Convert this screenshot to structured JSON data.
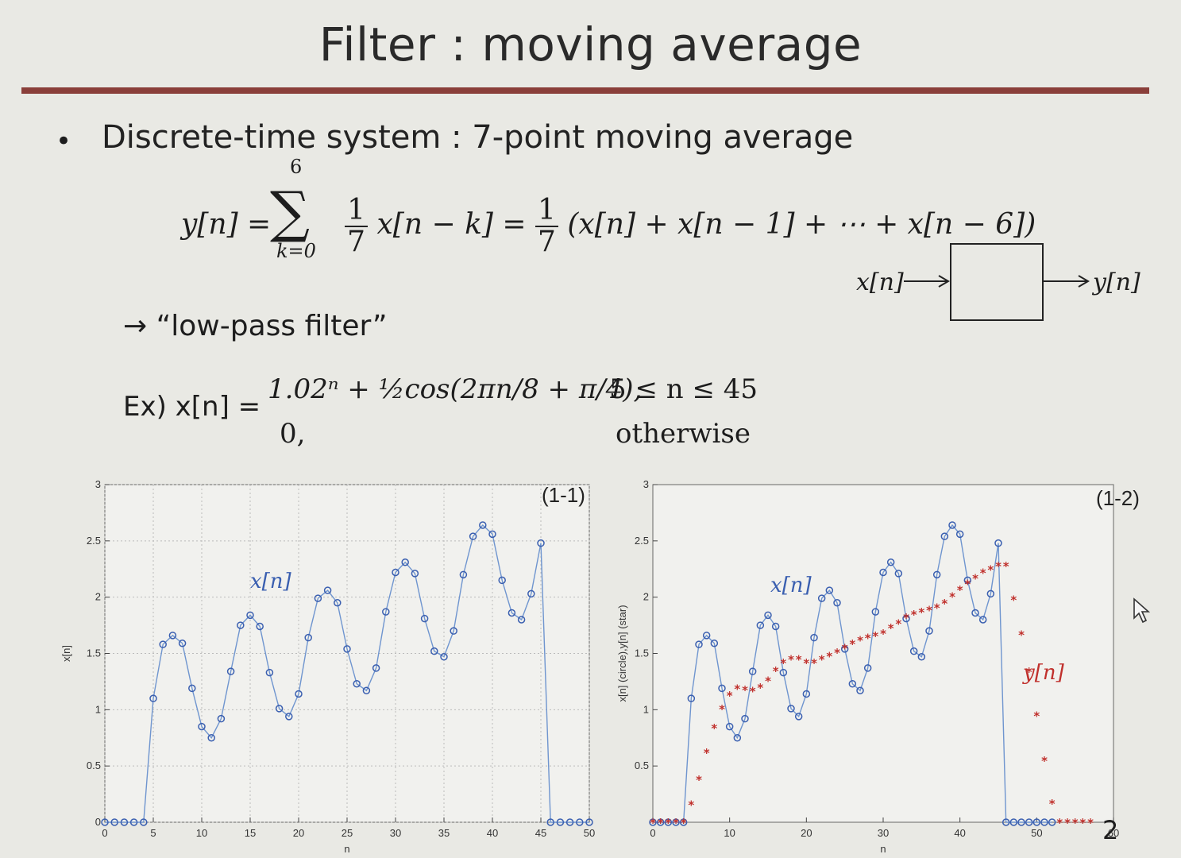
{
  "slide": {
    "title": "Filter : moving average",
    "bullet": "•",
    "heading": "Discrete-time system : 7-point moving average",
    "equation": {
      "lhs": "y[n] =",
      "sum_upper": "6",
      "sum_symbol": "∑",
      "sum_lower": "k=0",
      "frac_num": "1",
      "frac_den": "7",
      "term": "x[n − k] =",
      "rhs": "(x[n] + x[n − 1] + ⋯ + x[n − 6])"
    },
    "block": {
      "input": "x[n]",
      "output": "y[n]"
    },
    "lowpass": "→ “low-pass filter”",
    "example": {
      "label": "Ex) x[n] =",
      "line1": "1.02ⁿ + ½cos(2πn/8 + π/4),",
      "line1_cond": "5 ≤ n ≤ 45",
      "line2": "0,",
      "line2_cond": "otherwise"
    },
    "slide_number": "2"
  },
  "chart_data": [
    {
      "type": "scatter",
      "annotation": "(1-1)",
      "xlabel": "n",
      "ylabel": "x[n]",
      "xlim": [
        0,
        50
      ],
      "ylim": [
        0,
        3
      ],
      "xticks": [
        0,
        5,
        10,
        15,
        20,
        25,
        30,
        35,
        40,
        45,
        50
      ],
      "yticks": [
        0,
        0.5,
        1,
        1.5,
        2,
        2.5,
        3
      ],
      "grid": true,
      "series": [
        {
          "name": "x[n]",
          "marker": "circle",
          "color": "#3a5fb0",
          "x": [
            0,
            1,
            2,
            3,
            4,
            5,
            6,
            7,
            8,
            9,
            10,
            11,
            12,
            13,
            14,
            15,
            16,
            17,
            18,
            19,
            20,
            21,
            22,
            23,
            24,
            25,
            26,
            27,
            28,
            29,
            30,
            31,
            32,
            33,
            34,
            35,
            36,
            37,
            38,
            39,
            40,
            41,
            42,
            43,
            44,
            45,
            46,
            47,
            48,
            49,
            50
          ],
          "y": [
            0,
            0,
            0,
            0,
            0,
            1.1,
            1.58,
            1.66,
            1.59,
            1.19,
            0.85,
            0.75,
            0.92,
            1.34,
            1.75,
            1.84,
            1.74,
            1.33,
            1.01,
            0.94,
            1.14,
            1.64,
            1.99,
            2.06,
            1.95,
            1.54,
            1.23,
            1.17,
            1.37,
            1.87,
            2.22,
            2.31,
            2.21,
            1.81,
            1.52,
            1.47,
            1.7,
            2.2,
            2.54,
            2.64,
            2.56,
            2.15,
            1.86,
            1.8,
            2.03,
            2.48,
            0,
            0,
            0,
            0,
            0
          ]
        }
      ],
      "labels": [
        {
          "text": "x[n]",
          "color": "#3a5fb0"
        }
      ]
    },
    {
      "type": "scatter",
      "annotation": "(1-2)",
      "xlabel": "n",
      "ylabel": "x[n] (circle),y[n] (star)",
      "xlim": [
        0,
        60
      ],
      "ylim": [
        0,
        3
      ],
      "xticks": [
        0,
        10,
        20,
        30,
        40,
        50,
        60
      ],
      "yticks": [
        0.5,
        1,
        1.5,
        2,
        2.5,
        3
      ],
      "grid": false,
      "series": [
        {
          "name": "x[n]",
          "marker": "circle",
          "color": "#3a5fb0",
          "x": [
            0,
            1,
            2,
            3,
            4,
            5,
            6,
            7,
            8,
            9,
            10,
            11,
            12,
            13,
            14,
            15,
            16,
            17,
            18,
            19,
            20,
            21,
            22,
            23,
            24,
            25,
            26,
            27,
            28,
            29,
            30,
            31,
            32,
            33,
            34,
            35,
            36,
            37,
            38,
            39,
            40,
            41,
            42,
            43,
            44,
            45,
            46,
            47,
            48,
            49,
            50,
            51,
            52
          ],
          "y": [
            0,
            0,
            0,
            0,
            0,
            1.1,
            1.58,
            1.66,
            1.59,
            1.19,
            0.85,
            0.75,
            0.92,
            1.34,
            1.75,
            1.84,
            1.74,
            1.33,
            1.01,
            0.94,
            1.14,
            1.64,
            1.99,
            2.06,
            1.95,
            1.54,
            1.23,
            1.17,
            1.37,
            1.87,
            2.22,
            2.31,
            2.21,
            1.81,
            1.52,
            1.47,
            1.7,
            2.2,
            2.54,
            2.64,
            2.56,
            2.15,
            1.86,
            1.8,
            2.03,
            2.48,
            0,
            0,
            0,
            0,
            0,
            0,
            0
          ]
        },
        {
          "name": "y[n]",
          "marker": "star",
          "color": "#c0302c",
          "x": [
            0,
            1,
            2,
            3,
            4,
            5,
            6,
            7,
            8,
            9,
            10,
            11,
            12,
            13,
            14,
            15,
            16,
            17,
            18,
            19,
            20,
            21,
            22,
            23,
            24,
            25,
            26,
            27,
            28,
            29,
            30,
            31,
            32,
            33,
            34,
            35,
            36,
            37,
            38,
            39,
            40,
            41,
            42,
            43,
            44,
            45,
            46,
            47,
            48,
            49,
            50,
            51,
            52,
            53,
            54,
            55,
            56,
            57
          ],
          "y": [
            0,
            0,
            0,
            0,
            0,
            0.16,
            0.38,
            0.62,
            0.84,
            1.01,
            1.13,
            1.19,
            1.18,
            1.17,
            1.2,
            1.26,
            1.35,
            1.42,
            1.45,
            1.45,
            1.42,
            1.42,
            1.45,
            1.48,
            1.51,
            1.55,
            1.59,
            1.62,
            1.64,
            1.66,
            1.68,
            1.73,
            1.77,
            1.82,
            1.85,
            1.87,
            1.89,
            1.91,
            1.95,
            2.01,
            2.07,
            2.12,
            2.17,
            2.22,
            2.25,
            2.28,
            2.28,
            1.98,
            1.67,
            1.34,
            0.95,
            0.55,
            0.17,
            0,
            0,
            0,
            0,
            0
          ]
        }
      ],
      "labels": [
        {
          "text": "x[n]",
          "color": "#3a5fb0"
        },
        {
          "text": "y[n]",
          "color": "#c0302c"
        }
      ]
    }
  ]
}
